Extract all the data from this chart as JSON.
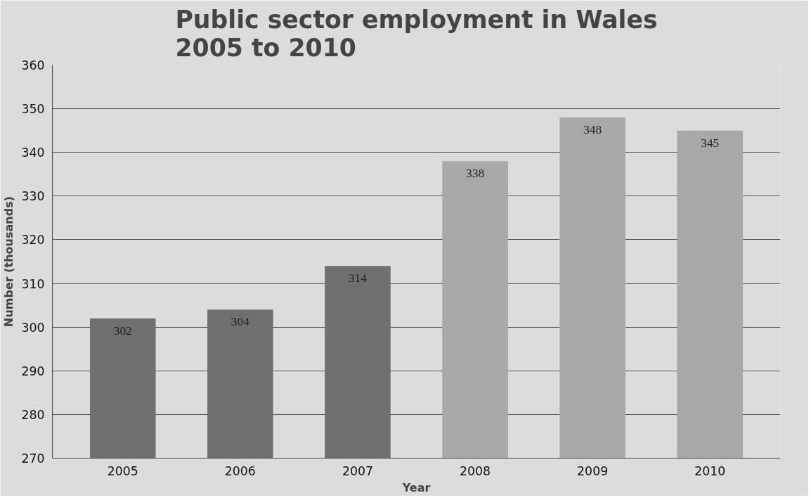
{
  "chart_data": {
    "type": "bar",
    "title": "Public sector employment in Wales\n2005 to 2010",
    "xlabel": "Year",
    "ylabel": "Number (thousands)",
    "categories": [
      "2005",
      "2006",
      "2007",
      "2008",
      "2009",
      "2010"
    ],
    "values": [
      302,
      304,
      314,
      338,
      348,
      345
    ],
    "colors": [
      "#6f6f6f",
      "#6f6f6f",
      "#6f6f6f",
      "#a8a8a8",
      "#a8a8a8",
      "#a8a8a8"
    ],
    "ylim": [
      270,
      360
    ],
    "yticks": [
      270,
      280,
      290,
      300,
      310,
      320,
      330,
      340,
      350,
      360
    ],
    "grid": "y",
    "data_labels": true
  }
}
